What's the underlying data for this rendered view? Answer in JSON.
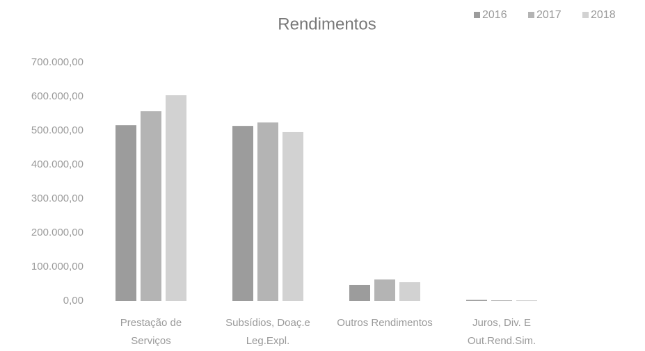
{
  "chart_data": {
    "type": "bar",
    "title": "Rendimentos",
    "categories": [
      "Prestação de Serviços",
      "Subsídios, Doaç.e Leg.Expl.",
      "Outros Rendimentos",
      "Juros, Div. E Out.Rend.Sim."
    ],
    "series": [
      {
        "name": "2016",
        "color": "#9c9c9c",
        "values": [
          516000,
          514000,
          47000,
          3000
        ]
      },
      {
        "name": "2017",
        "color": "#b4b4b4",
        "values": [
          557000,
          524000,
          63000,
          2000
        ]
      },
      {
        "name": "2018",
        "color": "#d2d2d2",
        "values": [
          604000,
          496000,
          55000,
          2000
        ]
      }
    ],
    "ylim": [
      0,
      700000
    ],
    "yticks": [
      {
        "value": 0,
        "label": "0,00"
      },
      {
        "value": 100000,
        "label": "100.000,00"
      },
      {
        "value": 200000,
        "label": "200.000,00"
      },
      {
        "value": 300000,
        "label": "300.000,00"
      },
      {
        "value": 400000,
        "label": "400.000,00"
      },
      {
        "value": 500000,
        "label": "500.000,00"
      },
      {
        "value": 600000,
        "label": "600.000,00"
      },
      {
        "value": 700000,
        "label": "700.000,00"
      }
    ],
    "grid": false,
    "legend": "top-right"
  }
}
